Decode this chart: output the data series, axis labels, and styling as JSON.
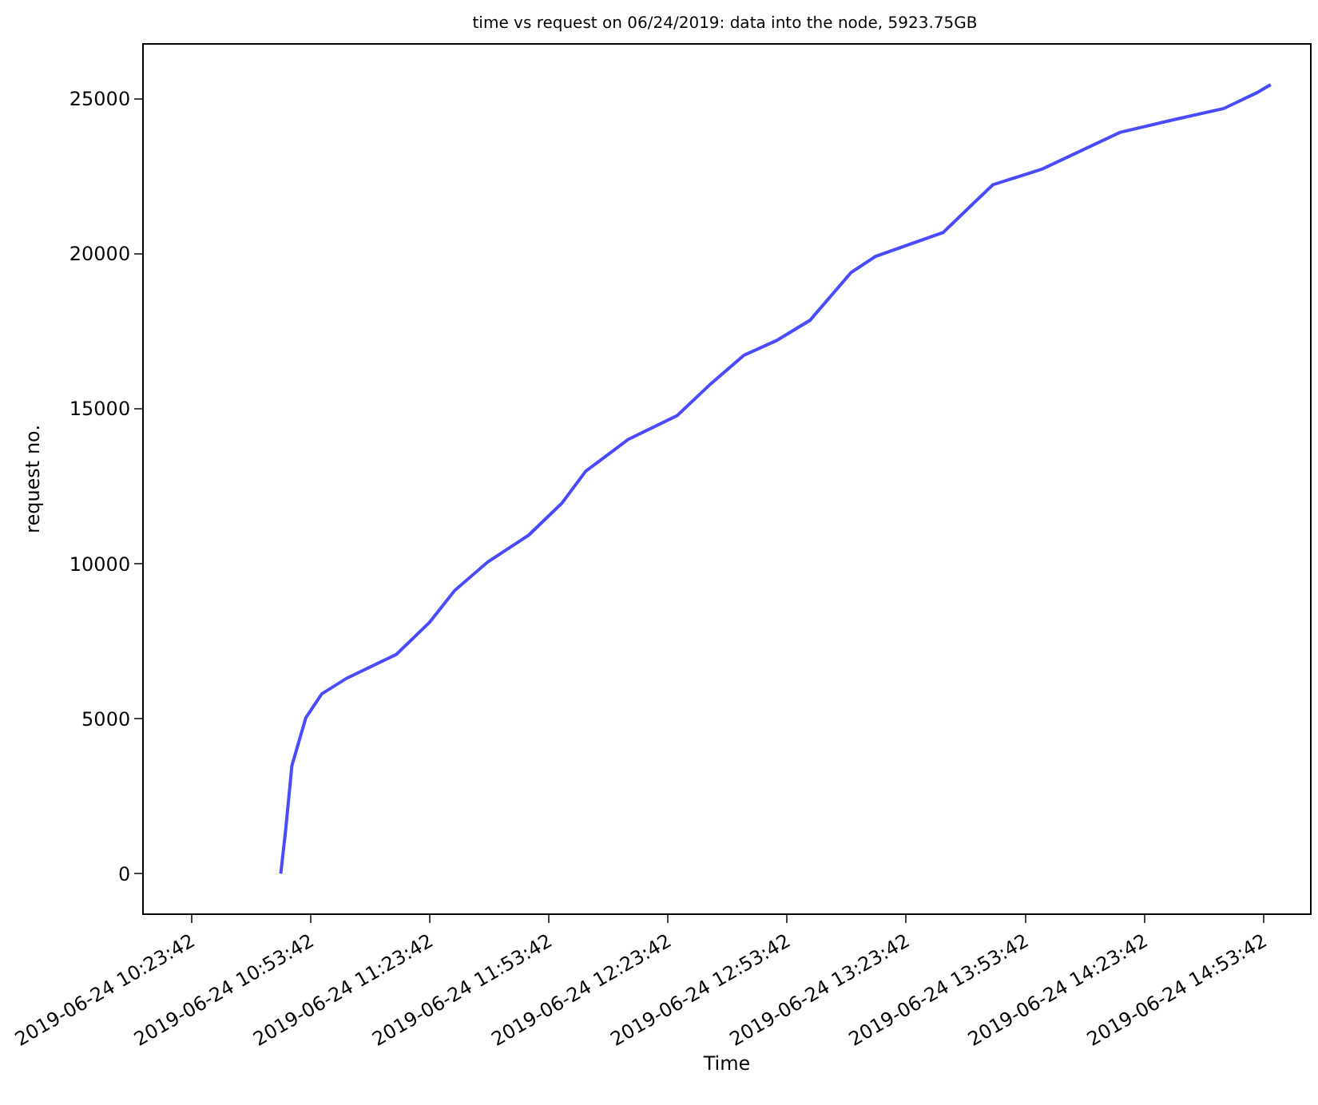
{
  "chart_data": {
    "type": "line",
    "title": "time vs request on 06/24/2019: data into the node, 5923.75GB",
    "xlabel": "Time",
    "ylabel": "request no.",
    "x": [
      "2019-06-24T10:46:12",
      "2019-06-24T10:47:27",
      "2019-06-24T10:49:00",
      "2019-06-24T10:52:30",
      "2019-06-24T10:56:30",
      "2019-06-24T11:02:50",
      "2019-06-24T11:15:20",
      "2019-06-24T11:23:40",
      "2019-06-24T11:30:00",
      "2019-06-24T11:38:20",
      "2019-06-24T11:48:40",
      "2019-06-24T11:57:00",
      "2019-06-24T12:03:00",
      "2019-06-24T12:13:40",
      "2019-06-24T12:26:00",
      "2019-06-24T12:34:30",
      "2019-06-24T12:42:50",
      "2019-06-24T12:51:00",
      "2019-06-24T12:59:30",
      "2019-06-24T13:09:50",
      "2019-06-24T13:16:00",
      "2019-06-24T13:33:00",
      "2019-06-24T13:45:30",
      "2019-06-24T13:58:00",
      "2019-06-24T14:17:30",
      "2019-06-24T14:31:00",
      "2019-06-24T14:43:40",
      "2019-06-24T14:52:00",
      "2019-06-24T14:55:30"
    ],
    "series": [
      {
        "color": "#4a4aff",
        "values": [
          0,
          1440,
          3490,
          5030,
          5800,
          6310,
          7080,
          8110,
          9140,
          10060,
          10930,
          11960,
          12990,
          14010,
          14780,
          15810,
          16730,
          17200,
          17860,
          19400,
          19920,
          20690,
          22230,
          22740,
          23920,
          24330,
          24690,
          25200,
          25460
        ]
      }
    ],
    "xlim": [
      "2019-06-24T10:11:42",
      "2019-06-24T15:05:24"
    ],
    "xticks": [
      {
        "value": "2019-06-24T10:23:42",
        "label": "2019-06-24 10:23:42"
      },
      {
        "value": "2019-06-24T10:53:42",
        "label": "2019-06-24 10:53:42"
      },
      {
        "value": "2019-06-24T11:23:42",
        "label": "2019-06-24 11:23:42"
      },
      {
        "value": "2019-06-24T11:53:42",
        "label": "2019-06-24 11:53:42"
      },
      {
        "value": "2019-06-24T12:23:42",
        "label": "2019-06-24 12:23:42"
      },
      {
        "value": "2019-06-24T12:53:42",
        "label": "2019-06-24 12:53:42"
      },
      {
        "value": "2019-06-24T13:23:42",
        "label": "2019-06-24 13:23:42"
      },
      {
        "value": "2019-06-24T13:53:42",
        "label": "2019-06-24 13:53:42"
      },
      {
        "value": "2019-06-24T14:23:42",
        "label": "2019-06-24 14:23:42"
      },
      {
        "value": "2019-06-24T14:53:42",
        "label": "2019-06-24 14:53:42"
      }
    ],
    "ylim": [
      -1280,
      26750
    ],
    "yticks": [
      0,
      5000,
      10000,
      15000,
      20000,
      25000
    ],
    "marker": "none",
    "line_style": "solid"
  }
}
